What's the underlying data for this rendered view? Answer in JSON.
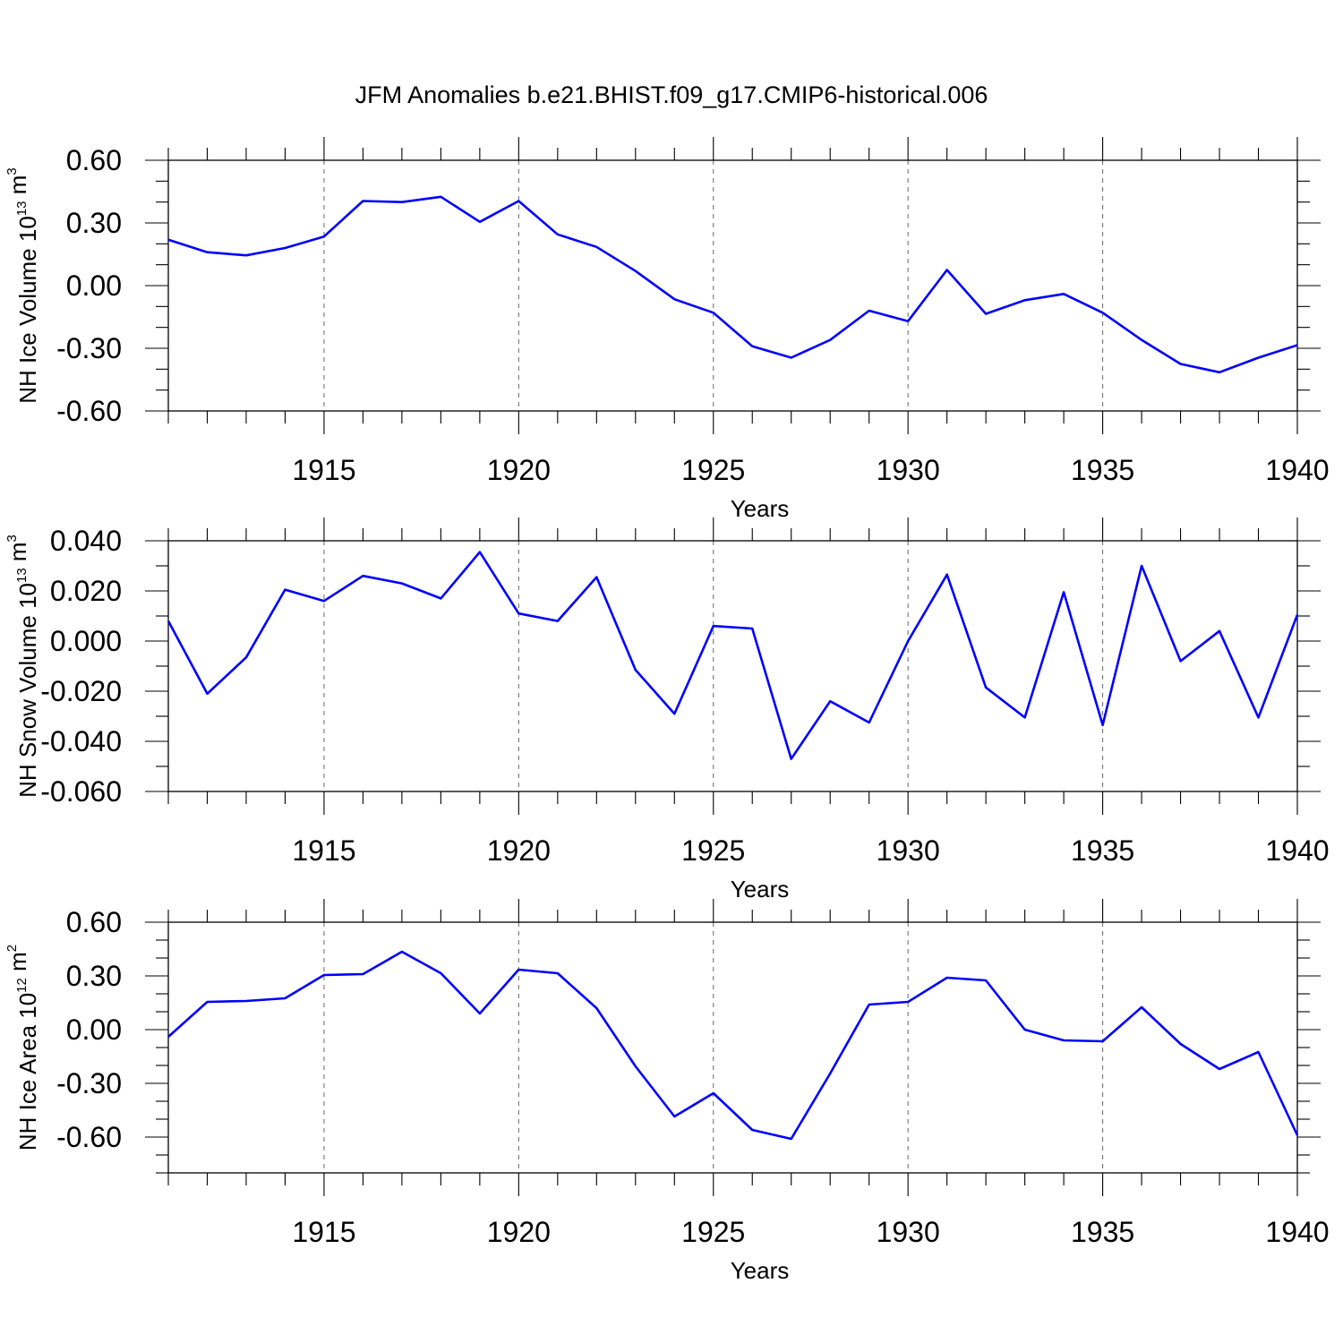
{
  "title": "JFM Anomalies b.e21.BHIST.f09_g17.CMIP6-historical.006",
  "chart_data": [
    {
      "type": "line",
      "xlabel": "Years",
      "ylabel": {
        "main": "NH Ice Volume 10",
        "exp": "13",
        "unit": " m",
        "unit_exp": "3"
      },
      "xlim": [
        1911,
        1940
      ],
      "ylim": [
        -0.6,
        0.6
      ],
      "xticks": [
        1915,
        1920,
        1925,
        1930,
        1935,
        1940
      ],
      "yticks": [
        0.6,
        0.3,
        0.0,
        -0.3,
        -0.6
      ],
      "ytick_labels": [
        "0.60",
        "0.30",
        "0.00",
        "-0.30",
        "-0.60"
      ],
      "ytick_minor_step": 0.1,
      "grid_x": [
        1915,
        1920,
        1925,
        1930,
        1935
      ],
      "color": "#0000ff",
      "x": [
        1911,
        1912,
        1913,
        1914,
        1915,
        1916,
        1917,
        1918,
        1919,
        1920,
        1921,
        1922,
        1923,
        1924,
        1925,
        1926,
        1927,
        1928,
        1929,
        1930,
        1931,
        1932,
        1933,
        1934,
        1935,
        1936,
        1937,
        1938,
        1939,
        1940
      ],
      "values": [
        0.22,
        0.16,
        0.145,
        0.18,
        0.235,
        0.405,
        0.4,
        0.425,
        0.305,
        0.405,
        0.245,
        0.185,
        0.07,
        -0.065,
        -0.13,
        -0.29,
        -0.345,
        -0.26,
        -0.12,
        -0.17,
        0.075,
        -0.135,
        -0.07,
        -0.04,
        -0.13,
        -0.26,
        -0.375,
        -0.415,
        -0.345,
        -0.285
      ]
    },
    {
      "type": "line",
      "xlabel": "Years",
      "ylabel": {
        "main": "NH Snow Volume 10",
        "exp": "13",
        "unit": " m",
        "unit_exp": "3"
      },
      "xlim": [
        1911,
        1940
      ],
      "ylim": [
        -0.06,
        0.04
      ],
      "xticks": [
        1915,
        1920,
        1925,
        1930,
        1935,
        1940
      ],
      "yticks": [
        0.04,
        0.02,
        0.0,
        -0.02,
        -0.04,
        -0.06
      ],
      "ytick_labels": [
        "0.040",
        "0.020",
        "0.000",
        "-0.020",
        "-0.040",
        "-0.060"
      ],
      "ytick_minor_step": 0.01,
      "grid_x": [
        1915,
        1920,
        1925,
        1930,
        1935
      ],
      "color": "#0000ff",
      "x": [
        1911,
        1912,
        1913,
        1914,
        1915,
        1916,
        1917,
        1918,
        1919,
        1920,
        1921,
        1922,
        1923,
        1924,
        1925,
        1926,
        1927,
        1928,
        1929,
        1930,
        1931,
        1932,
        1933,
        1934,
        1935,
        1936,
        1937,
        1938,
        1939,
        1940
      ],
      "values": [
        0.008,
        -0.021,
        -0.0065,
        0.0205,
        0.016,
        0.026,
        0.023,
        0.017,
        0.0355,
        0.011,
        0.008,
        0.0255,
        -0.0115,
        -0.029,
        0.006,
        0.005,
        -0.047,
        -0.024,
        -0.0325,
        0.0,
        0.0265,
        -0.0185,
        -0.0305,
        0.0195,
        -0.0335,
        0.03,
        -0.008,
        0.004,
        -0.0305,
        0.0105
      ]
    },
    {
      "type": "line",
      "xlabel": "Years",
      "ylabel": {
        "main": "NH Ice Area 10",
        "exp": "12",
        "unit": " m",
        "unit_exp": "2"
      },
      "xlim": [
        1911,
        1940
      ],
      "ylim": [
        -0.8,
        0.6
      ],
      "xticks": [
        1915,
        1920,
        1925,
        1930,
        1935,
        1940
      ],
      "yticks": [
        0.6,
        0.3,
        0.0,
        -0.3,
        -0.6
      ],
      "ytick_labels": [
        "0.60",
        "0.30",
        "0.00",
        "-0.30",
        "-0.60"
      ],
      "ytick_minor_step": 0.1,
      "grid_x": [
        1915,
        1920,
        1925,
        1930,
        1935
      ],
      "color": "#0000ff",
      "x": [
        1911,
        1912,
        1913,
        1914,
        1915,
        1916,
        1917,
        1918,
        1919,
        1920,
        1921,
        1922,
        1923,
        1924,
        1925,
        1926,
        1927,
        1928,
        1929,
        1930,
        1931,
        1932,
        1933,
        1934,
        1935,
        1936,
        1937,
        1938,
        1939,
        1940
      ],
      "values": [
        -0.04,
        0.155,
        0.16,
        0.175,
        0.305,
        0.31,
        0.435,
        0.315,
        0.09,
        0.335,
        0.315,
        0.12,
        -0.205,
        -0.485,
        -0.355,
        -0.56,
        -0.61,
        -0.245,
        0.14,
        0.155,
        0.29,
        0.275,
        0.0,
        -0.06,
        -0.065,
        0.125,
        -0.08,
        -0.22,
        -0.125,
        -0.59
      ]
    }
  ]
}
